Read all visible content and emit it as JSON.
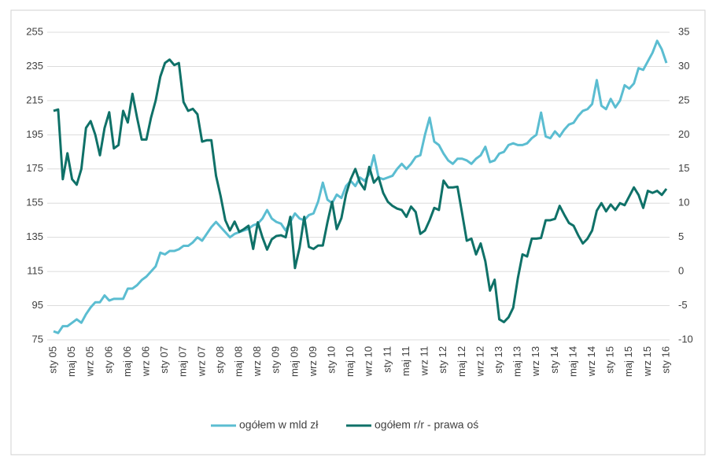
{
  "chart_data": {
    "type": "line",
    "categories": [
      "sty 05",
      null,
      null,
      null,
      "maj 05",
      null,
      null,
      null,
      "wrz 05",
      null,
      null,
      null,
      "sty 06",
      null,
      null,
      null,
      "maj 06",
      null,
      null,
      null,
      "wrz 06",
      null,
      null,
      null,
      "sty 07",
      null,
      null,
      null,
      "maj 07",
      null,
      null,
      null,
      "wrz 07",
      null,
      null,
      null,
      "sty 08",
      null,
      null,
      null,
      "maj 08",
      null,
      null,
      null,
      "wrz 08",
      null,
      null,
      null,
      "sty 09",
      null,
      null,
      null,
      "maj 09",
      null,
      null,
      null,
      "wrz 09",
      null,
      null,
      null,
      "sty 10",
      null,
      null,
      null,
      "maj 10",
      null,
      null,
      null,
      "wrz 10",
      null,
      null,
      null,
      "sty 11",
      null,
      null,
      null,
      "maj 11",
      null,
      null,
      null,
      "wrz 11",
      null,
      null,
      null,
      "sty 12",
      null,
      null,
      null,
      "maj 12",
      null,
      null,
      null,
      "wrz 12",
      null,
      null,
      null,
      "sty 13",
      null,
      null,
      null,
      "maj 13",
      null,
      null,
      null,
      "wrz 13",
      null,
      null,
      null,
      "sty 14",
      null,
      null,
      null,
      "maj 14",
      null,
      null,
      null,
      "wrz 14",
      null,
      null,
      null,
      "sty 15",
      null,
      null,
      null,
      "maj 15",
      null,
      null,
      null,
      "wrz 15",
      null,
      null,
      null,
      "sty 16"
    ],
    "series": [
      {
        "name": "ogółem w mld zł",
        "color": "#5bbdd1",
        "values": [
          80,
          79,
          83,
          83,
          85,
          87,
          85,
          90,
          94,
          97,
          97,
          101,
          98,
          99,
          99,
          99,
          105,
          105,
          107,
          110,
          112,
          115,
          118,
          126,
          125,
          127,
          127,
          128,
          130,
          130,
          132,
          135,
          133,
          137,
          141,
          144,
          141,
          138,
          135,
          137,
          138,
          139,
          140,
          142,
          143,
          146,
          151,
          146,
          144,
          143,
          139,
          144,
          149,
          146,
          145,
          148,
          149,
          156,
          167,
          157,
          155,
          160,
          158,
          165,
          168,
          165,
          170,
          168,
          172,
          183,
          170,
          169,
          170,
          171,
          175,
          178,
          175,
          178,
          182,
          183,
          195,
          205,
          191,
          189,
          184,
          180,
          178,
          181,
          181,
          180,
          178,
          181,
          183,
          188,
          179,
          180,
          184,
          185,
          189,
          190,
          189,
          189,
          190,
          193,
          195,
          208,
          194,
          193,
          197,
          194,
          198,
          201,
          202,
          206,
          209,
          210,
          213,
          227,
          212,
          210,
          216,
          211,
          215,
          224,
          222,
          225,
          234,
          233,
          238,
          243,
          250,
          245,
          237
        ]
      },
      {
        "name": "ogółem r/r - prawa oś",
        "color": "#0f7168",
        "axis": "y2",
        "values": [
          23.5,
          23.7,
          13.5,
          17.3,
          13.5,
          12.7,
          15,
          21,
          22,
          20,
          17,
          21,
          23.3,
          18,
          18.5,
          23.5,
          21.8,
          26,
          22.5,
          19.3,
          19.3,
          22.5,
          25,
          28.5,
          30.5,
          31,
          30.2,
          30.5,
          24.8,
          23.5,
          23.8,
          23,
          19,
          19.2,
          19.2,
          14,
          11,
          7.5,
          6,
          7.3,
          5.8,
          6.2,
          6.7,
          3.3,
          7.2,
          5,
          3.2,
          4.7,
          5.2,
          5.3,
          5,
          8,
          0.5,
          3.5,
          8,
          3.6,
          3.3,
          3.8,
          3.8,
          7.2,
          10.2,
          6.2,
          7.8,
          11.3,
          13.5,
          15,
          13,
          12,
          15.3,
          13,
          13.8,
          11.5,
          10.2,
          9.6,
          9.2,
          9,
          8,
          9.5,
          8.7,
          5.5,
          6,
          7.5,
          9.3,
          9,
          13.3,
          12.3,
          12.3,
          12.4,
          8.5,
          4.5,
          4.8,
          2.5,
          4.1,
          1.5,
          -2.8,
          -1.2,
          -7,
          -7.4,
          -6.7,
          -5.3,
          -1,
          2.5,
          2.2,
          4.8,
          4.8,
          4.9,
          7.5,
          7.5,
          7.7,
          9.6,
          8.3,
          7.1,
          6.7,
          5.3,
          4.1,
          4.8,
          6,
          8.9,
          10,
          8.8,
          9.8,
          9,
          10,
          9.7,
          11,
          12.3,
          11.2,
          9.3,
          11.8,
          11.5,
          11.8,
          11.2,
          12.1
        ]
      }
    ],
    "ylim": [
      75,
      255
    ],
    "yticks": [
      75,
      95,
      115,
      135,
      155,
      175,
      195,
      215,
      235,
      255
    ],
    "y2lim": [
      -10,
      35
    ],
    "y2ticks": [
      -10,
      -5,
      0,
      5,
      10,
      15,
      20,
      25,
      30,
      35
    ],
    "grid": true,
    "legend": "bottom"
  }
}
